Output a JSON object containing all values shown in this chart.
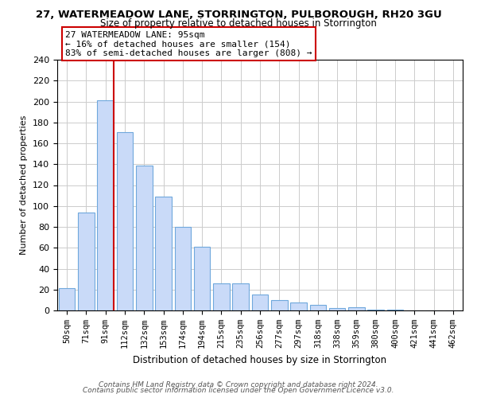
{
  "title": "27, WATERMEADOW LANE, STORRINGTON, PULBOROUGH, RH20 3GU",
  "subtitle": "Size of property relative to detached houses in Storrington",
  "xlabel": "Distribution of detached houses by size in Storrington",
  "ylabel": "Number of detached properties",
  "categories": [
    "50sqm",
    "71sqm",
    "91sqm",
    "112sqm",
    "132sqm",
    "153sqm",
    "174sqm",
    "194sqm",
    "215sqm",
    "235sqm",
    "256sqm",
    "277sqm",
    "297sqm",
    "318sqm",
    "338sqm",
    "359sqm",
    "380sqm",
    "400sqm",
    "421sqm",
    "441sqm",
    "462sqm"
  ],
  "values": [
    21,
    94,
    201,
    171,
    139,
    109,
    80,
    61,
    26,
    26,
    15,
    10,
    8,
    5,
    2,
    3,
    1,
    1,
    0,
    0,
    0
  ],
  "bar_color": "#c9daf8",
  "bar_edge_color": "#6fa8dc",
  "vline_color": "#cc0000",
  "annotation_text": "27 WATERMEADOW LANE: 95sqm\n← 16% of detached houses are smaller (154)\n83% of semi-detached houses are larger (808) →",
  "annotation_box_color": "#ffffff",
  "annotation_box_edge": "#cc0000",
  "ylim": [
    0,
    240
  ],
  "yticks": [
    0,
    20,
    40,
    60,
    80,
    100,
    120,
    140,
    160,
    180,
    200,
    220,
    240
  ],
  "background_color": "#ffffff",
  "grid_color": "#cccccc",
  "footer1": "Contains HM Land Registry data © Crown copyright and database right 2024.",
  "footer2": "Contains public sector information licensed under the Open Government Licence v3.0."
}
